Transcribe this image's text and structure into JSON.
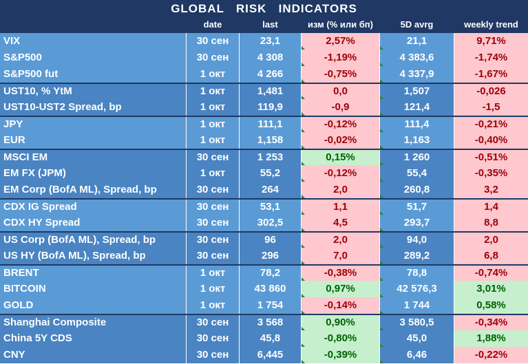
{
  "title": "GLOBAL   RISK   INDICATORS",
  "headers": [
    "",
    "date",
    "last",
    "изм (% или бп)",
    "5D avrg",
    "weekly trend"
  ],
  "rows": [
    {
      "name": "VIX",
      "date": "30 сен",
      "last": "23,1",
      "chg": "2,57%",
      "avg": "21,1",
      "trend": "9,71%",
      "chg_color": "red",
      "trend_color": "red",
      "group_start": false,
      "shade": "light"
    },
    {
      "name": "S&P500",
      "date": "30 сен",
      "last": "4 308",
      "chg": "-1,19%",
      "avg": "4 383,6",
      "trend": "-1,74%",
      "chg_color": "red",
      "trend_color": "red",
      "group_start": false,
      "shade": "light"
    },
    {
      "name": "S&P500 fut",
      "date": "1 окт",
      "last": "4 266",
      "chg": "-0,75%",
      "avg": "4 337,9",
      "trend": "-1,67%",
      "chg_color": "red",
      "trend_color": "red",
      "group_start": false,
      "shade": "light"
    },
    {
      "name": "UST10, % YtM",
      "date": "1 окт",
      "last": "1,481",
      "chg": "0,0",
      "avg": "1,507",
      "trend": "-0,026",
      "chg_color": "red",
      "trend_color": "red",
      "group_start": true,
      "shade": "mid"
    },
    {
      "name": "UST10-UST2 Spread, bp",
      "date": "1 окт",
      "last": "119,9",
      "chg": "-0,9",
      "avg": "121,4",
      "trend": "-1,5",
      "chg_color": "red",
      "trend_color": "red",
      "group_start": false,
      "shade": "mid"
    },
    {
      "name": "JPY",
      "date": "1 окт",
      "last": "111,1",
      "chg": "-0,12%",
      "avg": "111,4",
      "trend": "-0,21%",
      "chg_color": "red",
      "trend_color": "red",
      "group_start": true,
      "shade": "light"
    },
    {
      "name": "EUR",
      "date": "1 окт",
      "last": "1,158",
      "chg": "-0,02%",
      "avg": "1,163",
      "trend": "-0,40%",
      "chg_color": "red",
      "trend_color": "red",
      "group_start": false,
      "shade": "light"
    },
    {
      "name": "MSCI EM",
      "date": "30 сен",
      "last": "1 253",
      "chg": "0,15%",
      "avg": "1 260",
      "trend": "-0,51%",
      "chg_color": "green",
      "trend_color": "red",
      "group_start": true,
      "shade": "mid"
    },
    {
      "name": "EM FX (JPM)",
      "date": "1 окт",
      "last": "55,2",
      "chg": "-0,12%",
      "avg": "55,4",
      "trend": "-0,35%",
      "chg_color": "red",
      "trend_color": "red",
      "group_start": false,
      "shade": "mid"
    },
    {
      "name": "EM Corp (BofA ML), Spread, bp",
      "date": "30 сен",
      "last": "264",
      "chg": "2,0",
      "avg": "260,8",
      "trend": "3,2",
      "chg_color": "red",
      "trend_color": "red",
      "group_start": false,
      "shade": "mid"
    },
    {
      "name": "CDX IG Spread",
      "date": "30 сен",
      "last": "53,1",
      "chg": "1,1",
      "avg": "51,7",
      "trend": "1,4",
      "chg_color": "red",
      "trend_color": "red",
      "group_start": true,
      "shade": "light"
    },
    {
      "name": "CDX HY Spread",
      "date": "30 сен",
      "last": "302,5",
      "chg": "4,5",
      "avg": "293,7",
      "trend": "8,8",
      "chg_color": "red",
      "trend_color": "red",
      "group_start": false,
      "shade": "light"
    },
    {
      "name": "US Corp (BofA ML), Spread, bp",
      "date": "30 сен",
      "last": "96",
      "chg": "2,0",
      "avg": "94,0",
      "trend": "2,0",
      "chg_color": "red",
      "trend_color": "red",
      "group_start": true,
      "shade": "mid"
    },
    {
      "name": "US HY (BofA ML), Spread, bp",
      "date": "30 сен",
      "last": "296",
      "chg": "7,0",
      "avg": "289,2",
      "trend": "6,8",
      "chg_color": "red",
      "trend_color": "red",
      "group_start": false,
      "shade": "mid"
    },
    {
      "name": "BRENT",
      "date": "1 окт",
      "last": "78,2",
      "chg": "-0,38%",
      "avg": "78,8",
      "trend": "-0,74%",
      "chg_color": "red",
      "trend_color": "red",
      "group_start": true,
      "shade": "light"
    },
    {
      "name": "BITCOIN",
      "date": "1 окт",
      "last": "43 860",
      "chg": "0,97%",
      "avg": "42 576,3",
      "trend": "3,01%",
      "chg_color": "green",
      "trend_color": "green",
      "group_start": false,
      "shade": "light"
    },
    {
      "name": "GOLD",
      "date": "1 окт",
      "last": "1 754",
      "chg": "-0,14%",
      "avg": "1 744",
      "trend": "0,58%",
      "chg_color": "red",
      "trend_color": "green",
      "group_start": false,
      "shade": "light"
    },
    {
      "name": "Shanghai Composite",
      "date": "30 сен",
      "last": "3 568",
      "chg": "0,90%",
      "avg": "3 580,5",
      "trend": "-0,34%",
      "chg_color": "green",
      "trend_color": "red",
      "group_start": true,
      "shade": "mid"
    },
    {
      "name": "China 5Y CDS",
      "date": "30 сен",
      "last": "45,8",
      "chg": "-0,80%",
      "avg": "45,0",
      "trend": "1,88%",
      "chg_color": "green",
      "trend_color": "green",
      "group_start": false,
      "shade": "mid"
    },
    {
      "name": "CNY",
      "date": "30 сен",
      "last": "6,445",
      "chg": "-0,39%",
      "avg": "6,46",
      "trend": "-0,22%",
      "chg_color": "green",
      "trend_color": "red",
      "group_start": false,
      "shade": "mid"
    }
  ]
}
